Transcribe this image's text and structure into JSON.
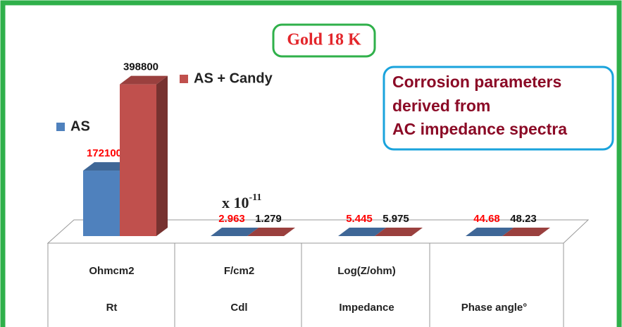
{
  "chart_data": {
    "type": "bar3d",
    "title": "Gold 18 K",
    "annotation": [
      "Corrosion parameters",
      "derived from",
      "AC impedance spectra"
    ],
    "multiplier": {
      "text": "x 10",
      "sup": "-11"
    },
    "categories": [
      "Rt",
      "Cdl",
      "Impedance",
      "Phase angle°"
    ],
    "units": [
      "Ohmcm2",
      "F/cm2",
      "Log(Z/ohm)",
      null
    ],
    "series": [
      {
        "name": "AS",
        "color": "#4f81bd",
        "label_color": "#ff0000",
        "values": [
          172100,
          2.963,
          5.445,
          44.68
        ]
      },
      {
        "name": "AS + Candy",
        "color": "#c0504d",
        "label_color": "#111111",
        "values": [
          398800,
          1.279,
          5.975,
          48.23
        ]
      }
    ],
    "ylim": [
      0,
      400000
    ]
  }
}
